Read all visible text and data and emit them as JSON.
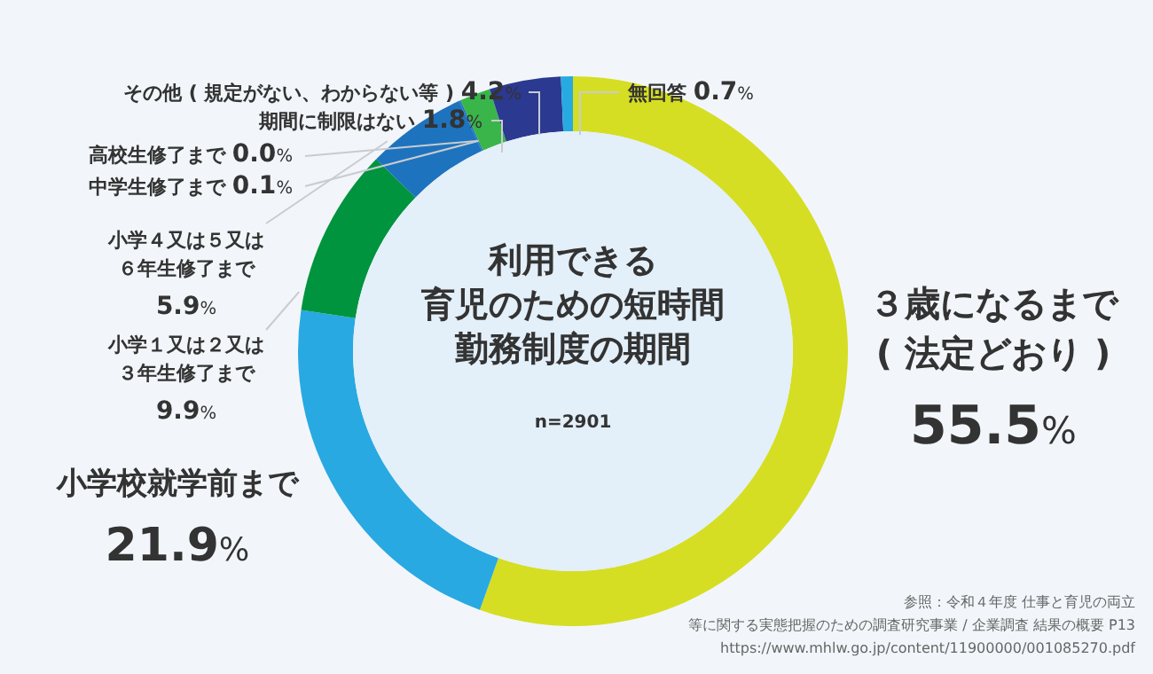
{
  "chart_data": {
    "type": "donut",
    "title": "利用できる育児のための短時間勤務制度の期間",
    "subtitle": "n=2901",
    "categories": [
      "３歳になるまで( 法定どおり )",
      "小学校就学前まで",
      "小学１又は２又は３年生修了まで",
      "小学４又は５又は６年生修了まで",
      "中学生修了まで",
      "高校生修了まで",
      "期間に制限はない",
      "その他 ( 規定がない、わからない等 )",
      "無回答"
    ],
    "values": [
      55.5,
      21.9,
      9.9,
      5.9,
      0.1,
      0.0,
      1.8,
      4.2,
      0.7
    ],
    "value_labels": [
      "55.5%",
      "21.9%",
      "9.9%",
      "5.9%",
      "0.1%",
      "0.0%",
      "1.8%",
      "4.2%",
      "0.7%"
    ],
    "colors": [
      "#d5de23",
      "#29a9e1",
      "#00943e",
      "#1e73be",
      "#1e73be",
      "#1e73be",
      "#39b54a",
      "#2b3990",
      "#27aae1"
    ],
    "annotations": [
      "参照：令和４年度 仕事と育児の両立等に関する実態把握のための調査研究事業 / 企業調査 結果の概要 P13 https://www.mhlw.go.jp/content/11900000/001085270.pdf"
    ]
  }
}
